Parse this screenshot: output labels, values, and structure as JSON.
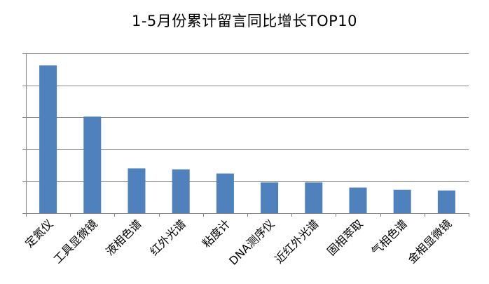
{
  "chart_data": {
    "type": "bar",
    "title": "1-5月份累计留言同比增长TOP10",
    "categories": [
      "定氮仪",
      "工具显微镜",
      "液相色谱",
      "红外光谱",
      "粘度计",
      "DNA测序仪",
      "近红外光谱",
      "固相萃取",
      "气相色谱",
      "金相显微镜"
    ],
    "values": [
      4.62,
      3.02,
      1.4,
      1.37,
      1.24,
      0.96,
      0.96,
      0.8,
      0.73,
      0.71
    ],
    "ylim": [
      0,
      5
    ],
    "yticks": [
      0,
      1,
      2,
      3,
      4,
      5
    ],
    "show_y_tick_labels": false,
    "grid": true,
    "legend": "none",
    "bar_color": "#4F81BD",
    "grid_color": "#868686"
  }
}
